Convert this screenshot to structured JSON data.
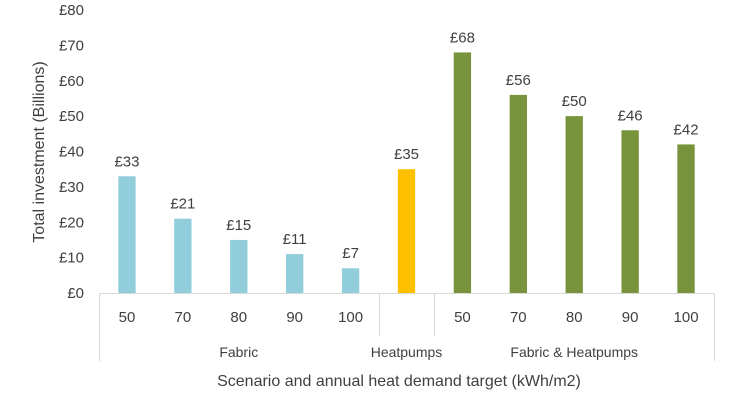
{
  "chart_data": {
    "type": "bar",
    "title": "",
    "ylabel": "Total investment (Billions)",
    "xlabel": "Scenario and annual heat demand target (kWh/m2)",
    "ylim": [
      0,
      80
    ],
    "yticks": [
      "£0",
      "£10",
      "£20",
      "£30",
      "£40",
      "£50",
      "£60",
      "£70",
      "£80"
    ],
    "grid": false,
    "legend": "none",
    "groups": [
      {
        "name": "Fabric",
        "color": "#92cddc",
        "categories": [
          "50",
          "70",
          "80",
          "90",
          "100"
        ],
        "values": [
          33,
          21,
          15,
          11,
          7
        ],
        "labels": [
          "£33",
          "£21",
          "£15",
          "£11",
          "£7"
        ]
      },
      {
        "name": "Heatpumps",
        "color": "#ffc000",
        "categories": [
          ""
        ],
        "values": [
          35
        ],
        "labels": [
          "£35"
        ]
      },
      {
        "name": "Fabric & Heatpumps",
        "color": "#77933c",
        "categories": [
          "50",
          "70",
          "80",
          "90",
          "100"
        ],
        "values": [
          68,
          56,
          50,
          46,
          42
        ],
        "labels": [
          "£68",
          "£56",
          "£50",
          "£46",
          "£42"
        ]
      }
    ]
  }
}
